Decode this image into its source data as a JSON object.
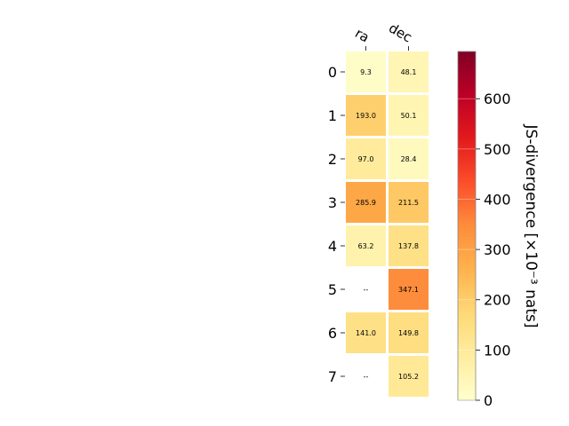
{
  "chart_data": {
    "type": "heatmap",
    "columns": [
      "ra",
      "dec"
    ],
    "rows": [
      "0",
      "1",
      "2",
      "3",
      "4",
      "5",
      "6",
      "7"
    ],
    "values": [
      [
        9.3,
        48.1
      ],
      [
        193.0,
        50.1
      ],
      [
        97.0,
        28.4
      ],
      [
        285.9,
        211.5
      ],
      [
        63.2,
        137.8
      ],
      [
        null,
        347.1
      ],
      [
        141.0,
        149.8
      ],
      [
        null,
        105.2
      ]
    ],
    "labels": [
      [
        "9.3",
        "48.1"
      ],
      [
        "193.0",
        "50.1"
      ],
      [
        "97.0",
        "28.4"
      ],
      [
        "285.9",
        "211.5"
      ],
      [
        "63.2",
        "137.8"
      ],
      [
        "--",
        "347.1"
      ],
      [
        "141.0",
        "149.8"
      ],
      [
        "--",
        "105.2"
      ]
    ],
    "colorbar": {
      "label": "JS-divergence [×10⁻³ nats]",
      "min": 0,
      "max": 694,
      "ticks": [
        0,
        100,
        200,
        300,
        400,
        500,
        600
      ],
      "colormap": "YlOrRd"
    }
  }
}
